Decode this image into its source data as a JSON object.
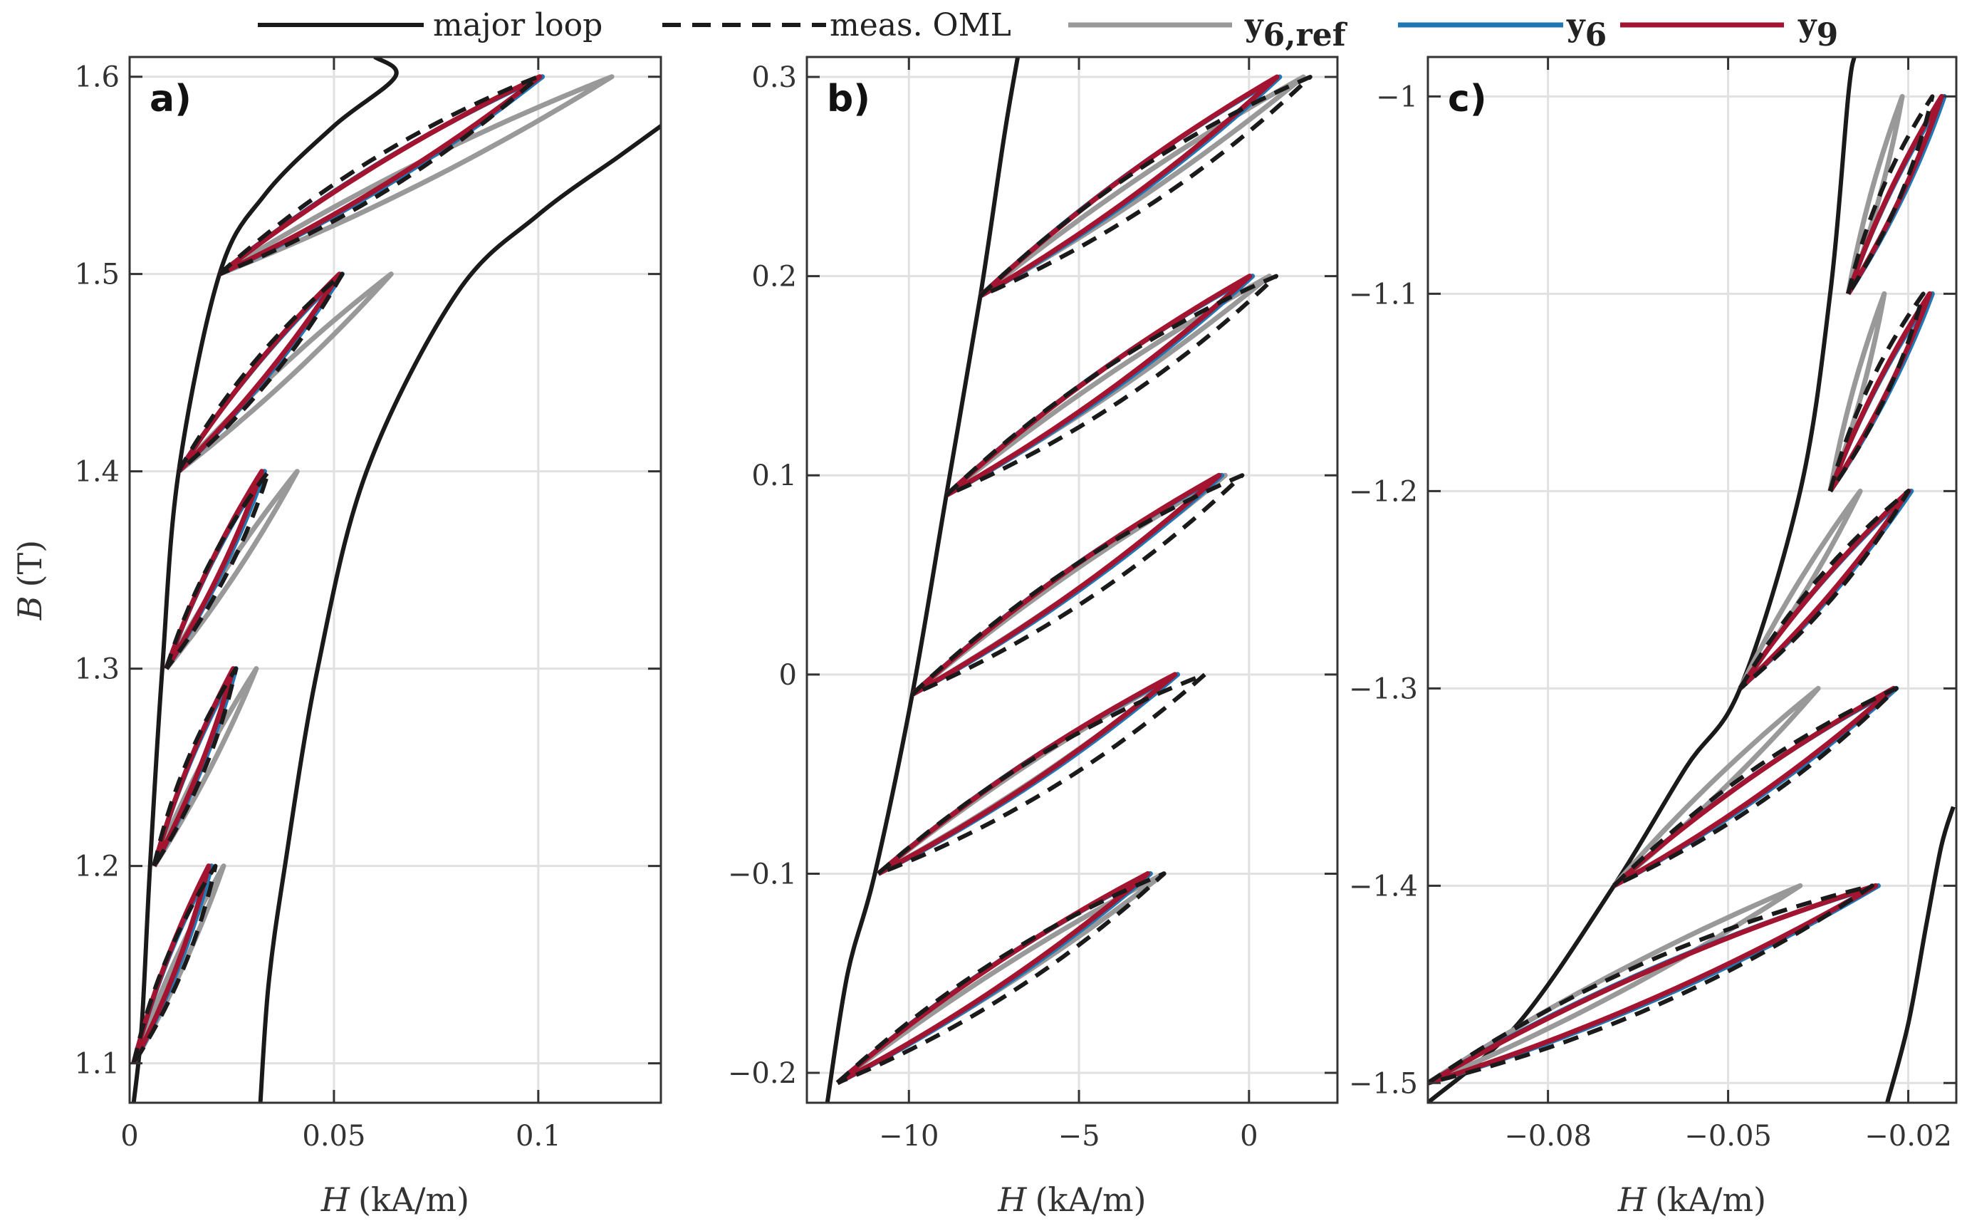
{
  "colors": {
    "major_loop": "#1a1a1a",
    "meas_oml": "#1a1a1a",
    "y6ref": "#999999",
    "y6": "#1f77b4",
    "y9": "#a2142f"
  },
  "chart_data": [
    {
      "type": "line",
      "panel_label": "a)",
      "xlabel_var": "H",
      "xlabel_unit": "(kA/m)",
      "ylabel_var": "B",
      "ylabel_unit": "(T)",
      "xlim": [
        0,
        0.13
      ],
      "ylim": [
        1.08,
        1.61
      ],
      "xticks": [
        0,
        0.05,
        0.1
      ],
      "xtick_labels": [
        "0",
        "0.05",
        "0.1"
      ],
      "yticks": [
        1.1,
        1.2,
        1.3,
        1.4,
        1.5,
        1.6
      ],
      "ytick_labels": [
        "1.1",
        "1.2",
        "1.3",
        "1.4",
        "1.5",
        "1.6"
      ],
      "major_loop": [
        [
          [
            0.001,
            1.08
          ],
          [
            0.003,
            1.12
          ],
          [
            0.005,
            1.2
          ],
          [
            0.008,
            1.3
          ],
          [
            0.012,
            1.4
          ],
          [
            0.022,
            1.5
          ],
          [
            0.033,
            1.54
          ],
          [
            0.05,
            1.575
          ],
          [
            0.065,
            1.6
          ],
          [
            0.06,
            1.61
          ]
        ],
        [
          [
            0.032,
            1.08
          ],
          [
            0.034,
            1.14
          ],
          [
            0.038,
            1.2
          ],
          [
            0.046,
            1.3
          ],
          [
            0.058,
            1.4
          ],
          [
            0.08,
            1.49
          ],
          [
            0.1,
            1.53
          ],
          [
            0.12,
            1.56
          ],
          [
            0.13,
            1.575
          ]
        ]
      ],
      "oml": [
        {
          "start": [
            0.001,
            1.1
          ],
          "end_meas": [
            0.021,
            1.2
          ],
          "end_model": [
            0.02,
            1.2
          ],
          "end_ref": [
            0.023,
            1.2
          ]
        },
        {
          "start": [
            0.006,
            1.2
          ],
          "end_meas": [
            0.026,
            1.3
          ],
          "end_model": [
            0.026,
            1.3
          ],
          "end_ref": [
            0.031,
            1.3
          ]
        },
        {
          "start": [
            0.009,
            1.3
          ],
          "end_meas": [
            0.034,
            1.4
          ],
          "end_model": [
            0.033,
            1.4
          ],
          "end_ref": [
            0.041,
            1.4
          ]
        },
        {
          "start": [
            0.012,
            1.4
          ],
          "end_meas": [
            0.052,
            1.5
          ],
          "end_model": [
            0.052,
            1.5
          ],
          "end_ref": [
            0.064,
            1.5
          ]
        },
        {
          "start": [
            0.022,
            1.5
          ],
          "end_meas": [
            0.1,
            1.6
          ],
          "end_model": [
            0.101,
            1.6
          ],
          "end_ref": [
            0.118,
            1.6
          ]
        }
      ]
    },
    {
      "type": "line",
      "panel_label": "b)",
      "xlabel_var": "H",
      "xlabel_unit": "(kA/m)",
      "xlim": [
        -13,
        2.6
      ],
      "ylim": [
        -0.215,
        0.31
      ],
      "xticks": [
        -10,
        -5,
        0
      ],
      "xtick_labels": [
        "−10",
        "−5",
        "0"
      ],
      "yticks": [
        -0.2,
        -0.1,
        0,
        0.1,
        0.2,
        0.3
      ],
      "ytick_labels": [
        "−0.2",
        "−0.1",
        "0",
        "0.1",
        "0.2",
        "0.3"
      ],
      "major_loop": [
        [
          [
            -12.4,
            -0.215
          ],
          [
            -11.8,
            -0.15
          ],
          [
            -11.0,
            -0.1
          ],
          [
            -9.9,
            -0.01
          ],
          [
            -8.9,
            0.09
          ],
          [
            -7.9,
            0.19
          ],
          [
            -7.2,
            0.27
          ],
          [
            -6.8,
            0.31
          ]
        ]
      ],
      "oml": [
        {
          "start": [
            -12.1,
            -0.205
          ],
          "end_meas": [
            -2.5,
            -0.1
          ],
          "end_model": [
            -2.9,
            -0.1
          ],
          "end_ref": [
            -2.5,
            -0.1
          ]
        },
        {
          "start": [
            -10.9,
            -0.1
          ],
          "end_meas": [
            -1.3,
            0.0
          ],
          "end_model": [
            -2.1,
            0.0
          ],
          "end_ref": [
            -2.1,
            0.0
          ]
        },
        {
          "start": [
            -9.9,
            -0.01
          ],
          "end_meas": [
            -0.2,
            0.1
          ],
          "end_model": [
            -0.8,
            0.1
          ],
          "end_ref": [
            -0.7,
            0.1
          ]
        },
        {
          "start": [
            -8.9,
            0.09
          ],
          "end_meas": [
            0.8,
            0.2
          ],
          "end_model": [
            0.1,
            0.2
          ],
          "end_ref": [
            0.6,
            0.2
          ]
        },
        {
          "start": [
            -7.9,
            0.19
          ],
          "end_meas": [
            1.8,
            0.3
          ],
          "end_model": [
            0.9,
            0.3
          ],
          "end_ref": [
            1.6,
            0.3
          ]
        }
      ]
    },
    {
      "type": "line",
      "panel_label": "c)",
      "xlabel_var": "H",
      "xlabel_unit": "(kA/m)",
      "xlim": [
        -0.1,
        -0.012
      ],
      "ylim": [
        -1.51,
        -0.98
      ],
      "xticks": [
        -0.08,
        -0.05,
        -0.02
      ],
      "xtick_labels": [
        "−0.08",
        "−0.05",
        "−0.02"
      ],
      "yticks": [
        -1.5,
        -1.4,
        -1.3,
        -1.2,
        -1.1,
        -1.0
      ],
      "ytick_labels": [
        "−1.5",
        "−1.4",
        "−1.3",
        "−1.2",
        "−1.1",
        "−1"
      ],
      "major_loop": [
        [
          [
            -0.1,
            -1.51
          ],
          [
            -0.085,
            -1.47
          ],
          [
            -0.069,
            -1.4
          ],
          [
            -0.057,
            -1.34
          ],
          [
            -0.048,
            -1.3
          ],
          [
            -0.038,
            -1.2
          ],
          [
            -0.033,
            -1.1
          ],
          [
            -0.03,
            -1.0
          ],
          [
            -0.029,
            -0.98
          ]
        ],
        [
          [
            -0.0235,
            -1.51
          ],
          [
            -0.02,
            -1.47
          ],
          [
            -0.017,
            -1.42
          ],
          [
            -0.0145,
            -1.38
          ],
          [
            -0.0125,
            -1.36
          ]
        ]
      ],
      "oml": [
        {
          "start": [
            -0.1,
            -1.5
          ],
          "end_meas": [
            -0.026,
            -1.4
          ],
          "end_model": [
            -0.025,
            -1.4
          ],
          "end_ref": [
            -0.038,
            -1.4
          ]
        },
        {
          "start": [
            -0.069,
            -1.4
          ],
          "end_meas": [
            -0.022,
            -1.3
          ],
          "end_model": [
            -0.022,
            -1.3
          ],
          "end_ref": [
            -0.035,
            -1.3
          ]
        },
        {
          "start": [
            -0.048,
            -1.3
          ],
          "end_meas": [
            -0.02,
            -1.2
          ],
          "end_model": [
            -0.0195,
            -1.2
          ],
          "end_ref": [
            -0.028,
            -1.2
          ]
        },
        {
          "start": [
            -0.033,
            -1.2
          ],
          "end_meas": [
            -0.0175,
            -1.1
          ],
          "end_model": [
            -0.016,
            -1.1
          ],
          "end_ref": [
            -0.024,
            -1.1
          ]
        },
        {
          "start": [
            -0.03,
            -1.1
          ],
          "end_meas": [
            -0.016,
            -1.0
          ],
          "end_model": [
            -0.014,
            -1.0
          ],
          "end_ref": [
            -0.021,
            -1.0
          ]
        }
      ]
    }
  ],
  "legend": {
    "major_loop": "major loop",
    "meas_oml": "meas. OML",
    "y6ref_base": "y",
    "y6ref_sub": "6,ref",
    "y6_base": "y",
    "y6_sub": "6",
    "y9_base": "y",
    "y9_sub": "9"
  }
}
